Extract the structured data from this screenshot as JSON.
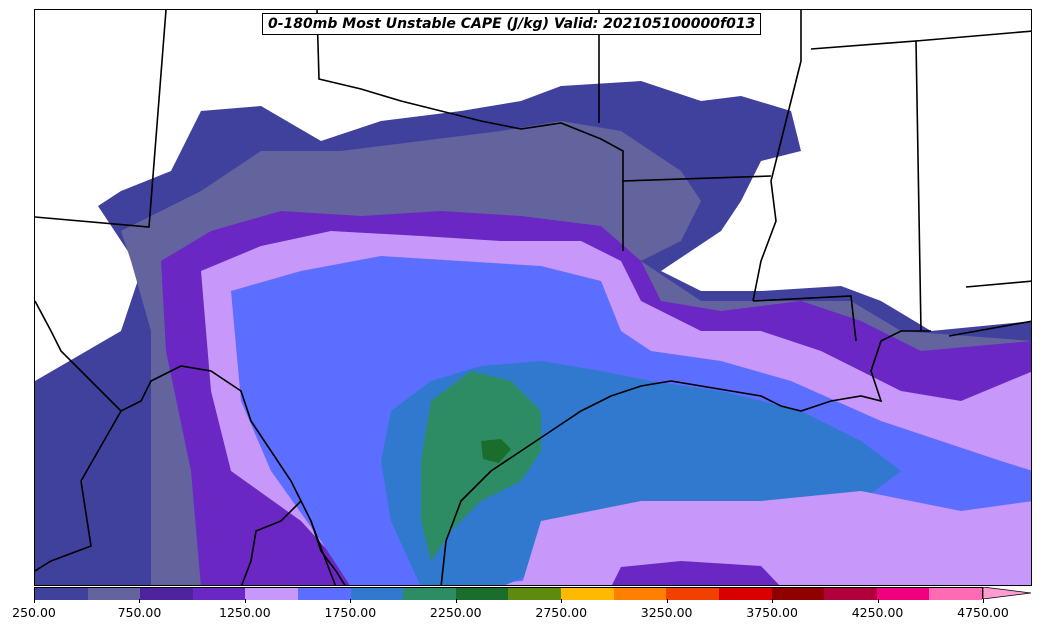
{
  "title": "0-180mb Most Unstable CAPE (J/kg) Valid: 202105100000f013",
  "colorbar": {
    "colors": [
      "#3f419d",
      "#63639e",
      "#4f239e",
      "#6a27c3",
      "#c797fa",
      "#5c6eff",
      "#3179cf",
      "#2e8c64",
      "#1b6d2b",
      "#5e8a10",
      "#ffb900",
      "#ff7f00",
      "#f24000",
      "#d80000",
      "#910000",
      "#b2003d",
      "#f0007f",
      "#ff6ab4",
      "#ff9cd2"
    ],
    "tick_labels": [
      "250.00",
      "750.00",
      "1250.00",
      "1750.00",
      "2250.00",
      "2750.00",
      "3250.00",
      "3750.00",
      "4250.00",
      "4750.00"
    ]
  },
  "icons": {
    "colorbar_extend": "triangle-arrow-right"
  }
}
